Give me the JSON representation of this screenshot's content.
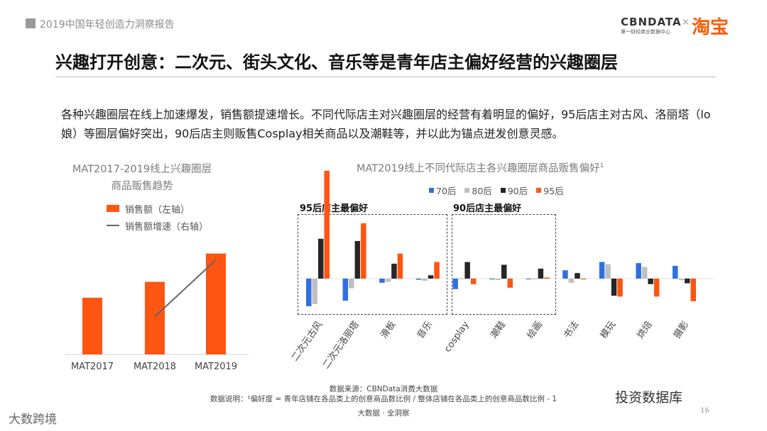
{
  "header": {
    "report_title": "2019中国年轻创造力洞察报告"
  },
  "brand": {
    "cbn": "CBNDATA",
    "cbn_sub": "第一财经商业数据中心",
    "times": "×",
    "taobao": "淘宝"
  },
  "main_title": "兴趣打开创意：二次元、街头文化、音乐等是青年店主偏好经营的兴趣圈层",
  "description": "各种兴趣圈层在线上加速爆发，销售额提速增长。不同代际店主对兴趣圈层的经营有着明显的偏好，95后店主对古风、洛丽塔（lo娘）等圈层偏好突出，90后店主则贩售Cosplay相关商品以及潮鞋等，并以此为锚点迸发创意灵感。",
  "colors": {
    "orange": "#ff5512",
    "blue": "#2f6fe0",
    "gray": "#bfbfbf",
    "black": "#262626",
    "line": "#666666"
  },
  "chart_data": [
    {
      "type": "bar",
      "title_line1": "MAT2017-2019线上兴趣圈层",
      "title_line2": "商品贩售趋势",
      "legend_bar": "销售额（左轴）",
      "legend_line": "销售额增速（右轴）",
      "categories": [
        "MAT2017",
        "MAT2018",
        "MAT2019"
      ],
      "series": [
        {
          "name": "销售额（左轴）",
          "axis": "left",
          "values": [
            50,
            64,
            89
          ]
        },
        {
          "name": "销售额增速（右轴）",
          "axis": "right",
          "type": "line",
          "values": [
            null,
            40,
            100
          ]
        }
      ],
      "ylim_left": [
        0,
        100
      ],
      "ylim_right": [
        0,
        120
      ]
    },
    {
      "type": "bar",
      "title": "MAT2019线上不同代际店主各兴趣圈层商品贩售偏好",
      "title_sup": "1",
      "categories": [
        "二次元古风",
        "二次元洛丽塔",
        "滑板",
        "音乐",
        "cosplay",
        "潮鞋",
        "绘画",
        "书法",
        "模玩",
        "烘焙",
        "摄影"
      ],
      "series": [
        {
          "name": "70后",
          "color": "#2f6fe0",
          "values": [
            -1.0,
            -0.8,
            -0.15,
            -0.04,
            -0.38,
            -0.03,
            -0.02,
            0.15,
            0.3,
            0.28,
            0.23
          ]
        },
        {
          "name": "80后",
          "color": "#bfbfbf",
          "values": [
            -0.92,
            -0.35,
            -0.12,
            -0.08,
            -0.02,
            -0.05,
            -0.03,
            -0.15,
            0.26,
            0.21,
            -0.06
          ]
        },
        {
          "name": "90后",
          "color": "#262626",
          "values": [
            0.72,
            0.68,
            0.27,
            0.06,
            0.3,
            0.25,
            0.18,
            0.1,
            -0.62,
            -0.2,
            -0.17
          ]
        },
        {
          "name": "95后",
          "color": "#ff5512",
          "values": [
            1.95,
            1.0,
            0.45,
            0.3,
            -0.2,
            -0.33,
            0.02,
            -0.03,
            -0.65,
            -0.65,
            -0.82
          ]
        }
      ],
      "ylim": [
        -1.3,
        2.1
      ],
      "box_labels": [
        "95后店主最偏好",
        "90后店主最偏好"
      ]
    }
  ],
  "footer": {
    "source": "数据来源：CBNData消费大数据",
    "note": "数据说明：¹偏好度 = 青年店铺在各品类上的创意商品数比例 / 整体店铺在各品类上的创意商品数比例 - 1",
    "slogan": "大数据 · 全洞察",
    "page": "16"
  },
  "watermarks": {
    "left": "大数跨境",
    "right": "投资数据库"
  }
}
